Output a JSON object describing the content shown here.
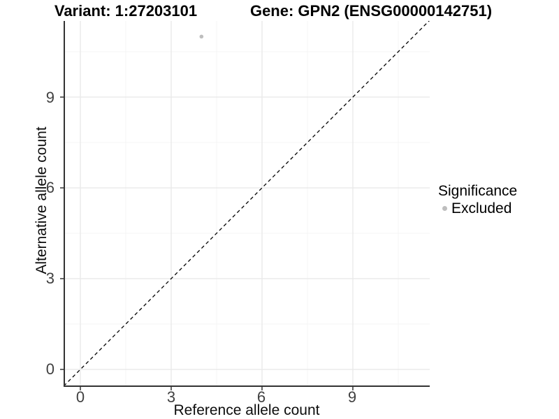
{
  "figure": {
    "title_left": "Variant: 1:27203101",
    "title_right": "Gene: GPN2 (ENSG00000142751)"
  },
  "colors": {
    "grid_major": "#e8e8e8",
    "grid_minor": "#f4f4f4",
    "axis": "#333333",
    "ref_line": "#000000",
    "point": "#bebebe",
    "tick_text": "#404040",
    "background": "#ffffff"
  },
  "chart_data": {
    "type": "scatter",
    "title": "Variant: 1:27203101 | Gene: GPN2 (ENSG00000142751)",
    "xlabel": "Reference allele count",
    "ylabel": "Alternative allele count",
    "xlim": [
      -0.55,
      11.55
    ],
    "ylim": [
      -0.55,
      11.55
    ],
    "x_ticks": [
      "0",
      "3",
      "6",
      "9"
    ],
    "y_ticks": [
      "9",
      "6",
      "3",
      "0"
    ],
    "x_tick_values": [
      0,
      3,
      6,
      9
    ],
    "y_tick_values": [
      0,
      3,
      6,
      9
    ],
    "x_minor_values": [
      1.5,
      4.5,
      7.5,
      10.5
    ],
    "y_minor_values": [
      1.5,
      4.5,
      7.5,
      10.5
    ],
    "grid": true,
    "series": [
      {
        "name": "Excluded",
        "color": "#bebebe",
        "points": [
          {
            "x": 4,
            "y": 11
          }
        ]
      }
    ],
    "reference_line": {
      "type": "identity",
      "slope": 1,
      "intercept": 0,
      "style": "dashed",
      "color": "#000000"
    },
    "legend": {
      "title": "Significance",
      "position": "right",
      "entries": [
        {
          "label": "Excluded",
          "color": "#bebebe",
          "marker": "dot"
        }
      ]
    }
  }
}
